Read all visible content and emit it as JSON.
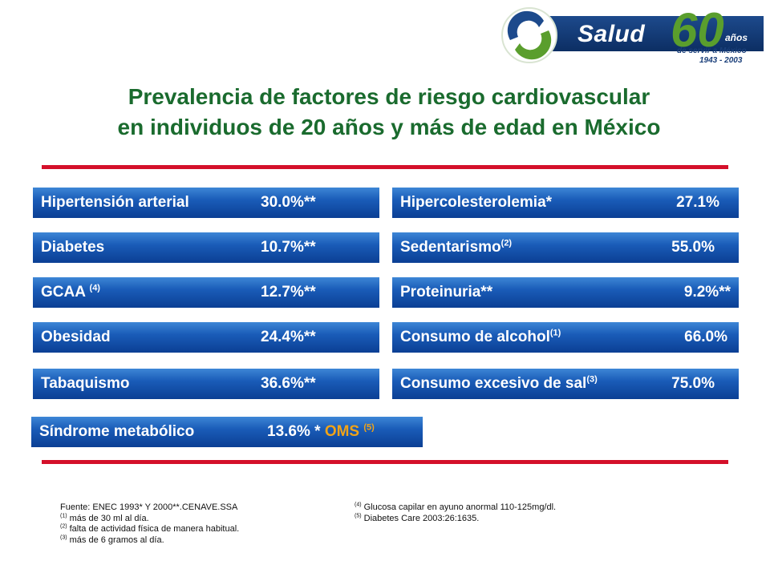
{
  "logo": {
    "name": "Salud",
    "number": "60",
    "anos": "años",
    "subtitle": "de servir a México",
    "years": "1943 - 2003",
    "colors": {
      "navy": "#0c2e63",
      "green": "#5a9e2d"
    }
  },
  "title": {
    "line1": "Prevalencia de factores de riesgo cardiovascular",
    "line2": "en individuos de 20 años y más de edad en México",
    "color": "#1a6b2e"
  },
  "left_items": [
    {
      "label": "Hipertensión arterial",
      "sup": "",
      "value": "30.0%**"
    },
    {
      "label": "Diabetes",
      "sup": "",
      "value": "10.7%**"
    },
    {
      "label": "GCAA ",
      "sup": "(4)",
      "value": "12.7%**"
    },
    {
      "label": "Obesidad",
      "sup": "",
      "value": "24.4%**"
    },
    {
      "label": "Tabaquismo",
      "sup": "",
      "value": "36.6%**"
    }
  ],
  "right_items": [
    {
      "label": "Hipercolesterolemia*",
      "sup": "",
      "value": "27.1%"
    },
    {
      "label": "Sedentarismo",
      "sup": "(2)",
      "value": "55.0%"
    },
    {
      "label": "Proteinuria**",
      "sup": "",
      "value": "9.2%**"
    },
    {
      "label": "Consumo de alcohol",
      "sup": "(1)",
      "value": "66.0%"
    },
    {
      "label": "Consumo excesivo de sal",
      "sup": "(3)",
      "value": "75.0%"
    }
  ],
  "metabolic": {
    "label": "Síndrome metabólico",
    "value": "13.6% *",
    "oms": "OMS ",
    "oms_sup": "(5)",
    "oms_color": "#f0a318"
  },
  "footnotes_left": {
    "source": "Fuente: ENEC 1993* Y 2000**.CENAVE.SSA",
    "n1_sup": "(1)",
    "n1": " más de 30 ml al día.",
    "n2_sup": "(2)",
    "n2": "  falta de actividad física de manera habitual.",
    "n3_sup": "(3)",
    "n3": " más de 6 gramos al día."
  },
  "footnotes_right": {
    "n4_sup": "(4)",
    "n4": " Glucosa capilar en ayuno anormal 110-125mg/dl.",
    "n5_sup": "(5)",
    "n5": " Diabetes Care 2003:26:1635."
  },
  "accent_red": "#d4102a",
  "bar_blue": "#1a5cb8"
}
